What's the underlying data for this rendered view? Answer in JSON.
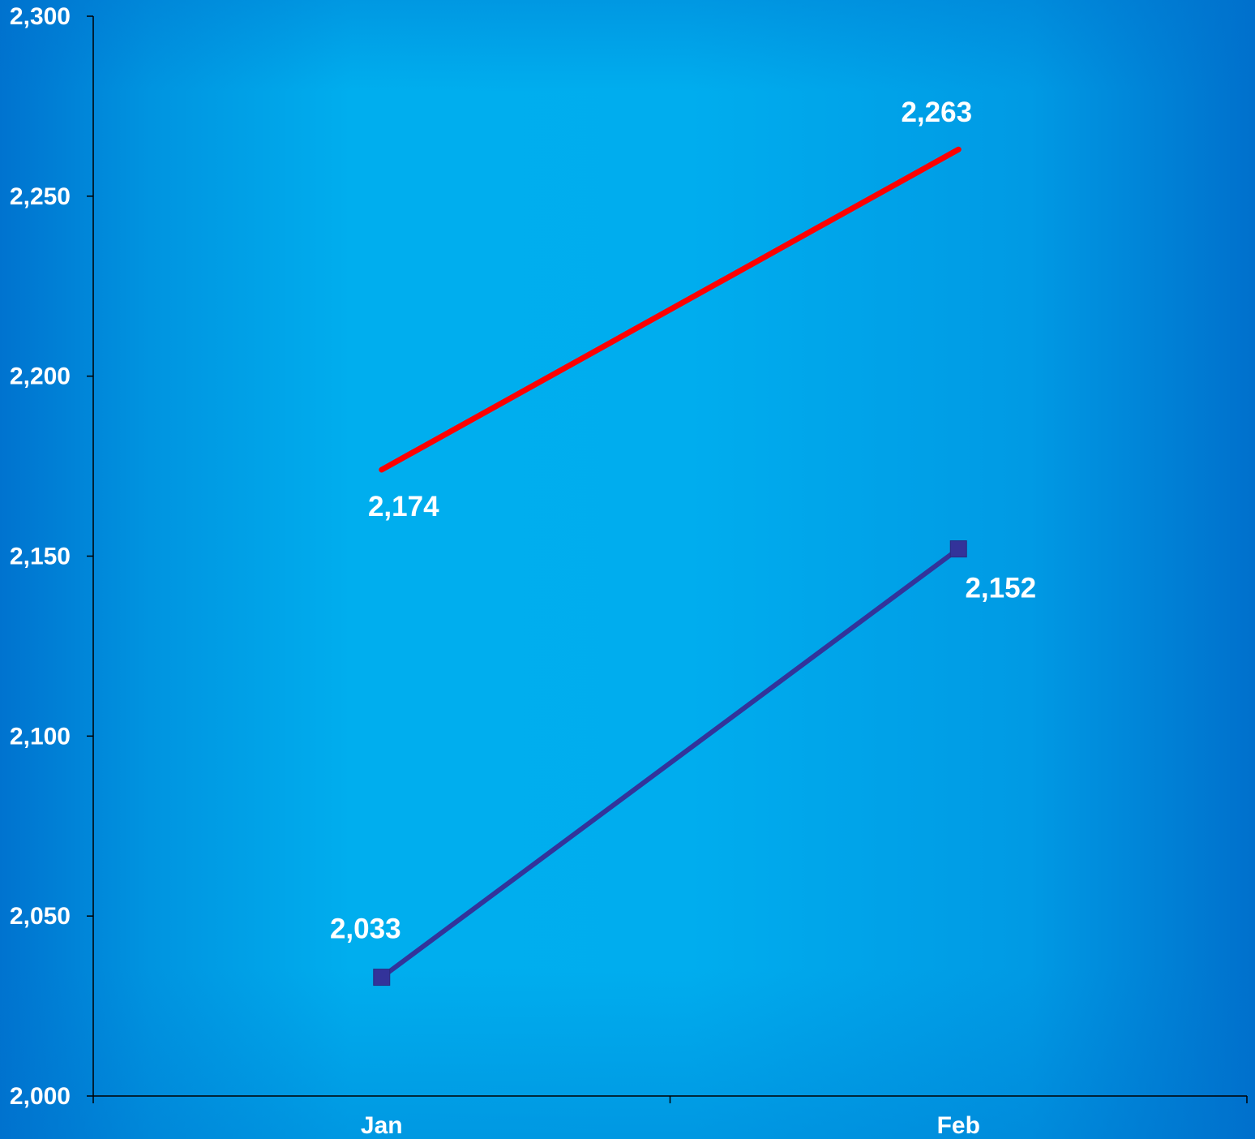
{
  "chart_data": {
    "type": "line",
    "title": "",
    "xlabel": "",
    "ylabel": "",
    "categories": [
      "Jan",
      "Feb"
    ],
    "ylim": [
      2000,
      2300
    ],
    "yticks": [
      2000,
      2050,
      2100,
      2150,
      2200,
      2250,
      2300
    ],
    "ytick_labels": [
      "2,000",
      "2,050",
      "2,100",
      "2,150",
      "2,200",
      "2,250",
      "2,300"
    ],
    "grid": false,
    "legend": "none",
    "background_color": "#00a8e8",
    "series": [
      {
        "values": [
          2174,
          2263
        ],
        "labels": [
          "2,174",
          "2,263"
        ],
        "color": "#ff0000",
        "marker": "none"
      },
      {
        "values": [
          2033,
          2152
        ],
        "labels": [
          "2,033",
          "2,152"
        ],
        "color": "#33339a",
        "marker": "square"
      }
    ]
  }
}
